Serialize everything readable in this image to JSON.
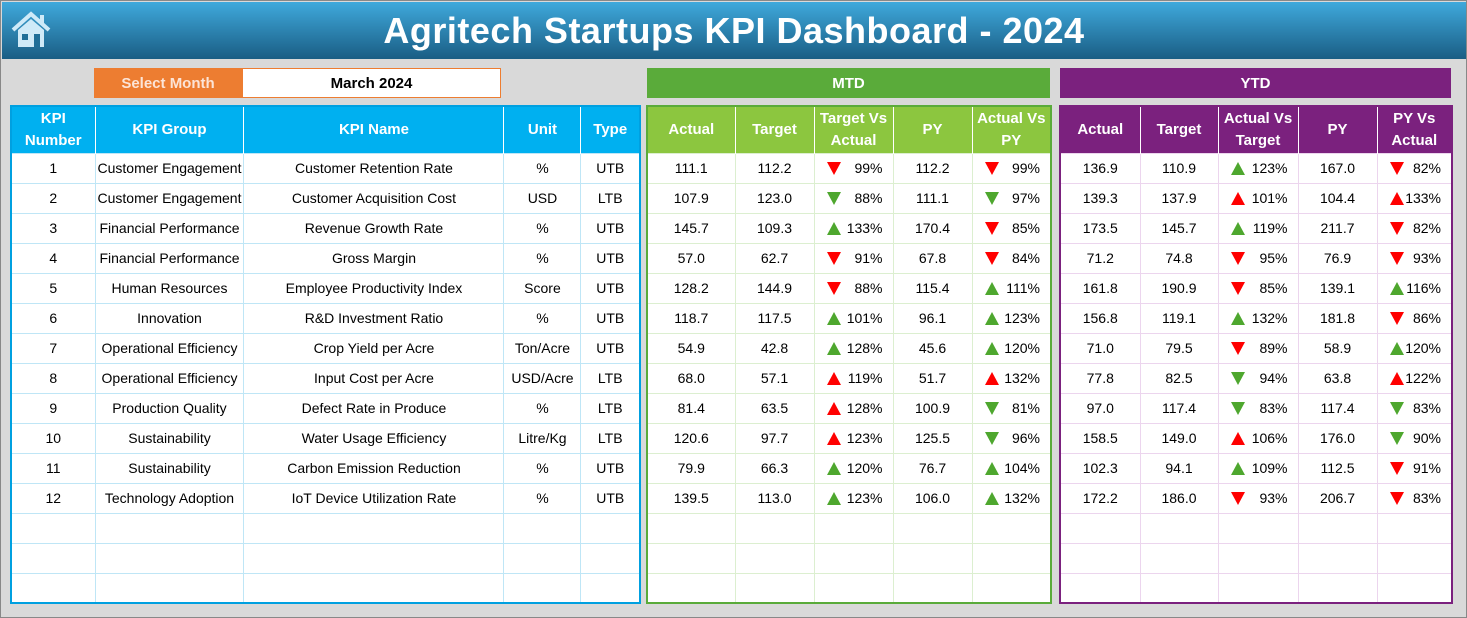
{
  "title": "Agritech Startups KPI Dashboard - 2024",
  "select_month": {
    "label": "Select Month",
    "value": "March 2024"
  },
  "sections": {
    "mtd": "MTD",
    "ytd": "YTD"
  },
  "colors": {
    "green": "#4ea72e",
    "red": "#ff0000",
    "header_blue": "#00b0f0",
    "mtd_green": "#5aab3a",
    "ytd_purple": "#7b217e",
    "select_orange": "#ed7d31"
  },
  "headers": {
    "left": [
      "KPI Number",
      "KPI Group",
      "KPI Name",
      "Unit",
      "Type"
    ],
    "mtd": [
      "Actual",
      "Target",
      "Target Vs Actual",
      "PY",
      "Actual Vs PY"
    ],
    "ytd": [
      "Actual",
      "Target",
      "Actual Vs Target",
      "PY",
      "PY Vs Actual"
    ]
  },
  "rows": [
    {
      "num": "1",
      "group": "Customer Engagement",
      "name": "Customer Retention Rate",
      "unit": "%",
      "type": "UTB",
      "mtd": {
        "actual": "111.1",
        "target": "112.2",
        "tva": {
          "pct": "99%",
          "arrow": "down",
          "color": "red"
        },
        "py": "112.2",
        "avp": {
          "pct": "99%",
          "arrow": "down",
          "color": "red"
        }
      },
      "ytd": {
        "actual": "136.9",
        "target": "110.9",
        "avt": {
          "pct": "123%",
          "arrow": "up",
          "color": "green"
        },
        "py": "167.0",
        "pva": {
          "pct": "82%",
          "arrow": "down",
          "color": "red"
        }
      }
    },
    {
      "num": "2",
      "group": "Customer Engagement",
      "name": "Customer Acquisition Cost",
      "unit": "USD",
      "type": "LTB",
      "mtd": {
        "actual": "107.9",
        "target": "123.0",
        "tva": {
          "pct": "88%",
          "arrow": "down",
          "color": "green"
        },
        "py": "111.1",
        "avp": {
          "pct": "97%",
          "arrow": "down",
          "color": "green"
        }
      },
      "ytd": {
        "actual": "139.3",
        "target": "137.9",
        "avt": {
          "pct": "101%",
          "arrow": "up",
          "color": "red"
        },
        "py": "104.4",
        "pva": {
          "pct": "133%",
          "arrow": "up",
          "color": "red"
        }
      }
    },
    {
      "num": "3",
      "group": "Financial Performance",
      "name": "Revenue Growth Rate",
      "unit": "%",
      "type": "UTB",
      "mtd": {
        "actual": "145.7",
        "target": "109.3",
        "tva": {
          "pct": "133%",
          "arrow": "up",
          "color": "green"
        },
        "py": "170.4",
        "avp": {
          "pct": "85%",
          "arrow": "down",
          "color": "red"
        }
      },
      "ytd": {
        "actual": "173.5",
        "target": "145.7",
        "avt": {
          "pct": "119%",
          "arrow": "up",
          "color": "green"
        },
        "py": "211.7",
        "pva": {
          "pct": "82%",
          "arrow": "down",
          "color": "red"
        }
      }
    },
    {
      "num": "4",
      "group": "Financial Performance",
      "name": "Gross Margin",
      "unit": "%",
      "type": "UTB",
      "mtd": {
        "actual": "57.0",
        "target": "62.7",
        "tva": {
          "pct": "91%",
          "arrow": "down",
          "color": "red"
        },
        "py": "67.8",
        "avp": {
          "pct": "84%",
          "arrow": "down",
          "color": "red"
        }
      },
      "ytd": {
        "actual": "71.2",
        "target": "74.8",
        "avt": {
          "pct": "95%",
          "arrow": "down",
          "color": "red"
        },
        "py": "76.9",
        "pva": {
          "pct": "93%",
          "arrow": "down",
          "color": "red"
        }
      }
    },
    {
      "num": "5",
      "group": "Human Resources",
      "name": "Employee Productivity Index",
      "unit": "Score",
      "type": "UTB",
      "mtd": {
        "actual": "128.2",
        "target": "144.9",
        "tva": {
          "pct": "88%",
          "arrow": "down",
          "color": "red"
        },
        "py": "115.4",
        "avp": {
          "pct": "111%",
          "arrow": "up",
          "color": "green"
        }
      },
      "ytd": {
        "actual": "161.8",
        "target": "190.9",
        "avt": {
          "pct": "85%",
          "arrow": "down",
          "color": "red"
        },
        "py": "139.1",
        "pva": {
          "pct": "116%",
          "arrow": "up",
          "color": "green"
        }
      }
    },
    {
      "num": "6",
      "group": "Innovation",
      "name": "R&D Investment Ratio",
      "unit": "%",
      "type": "UTB",
      "mtd": {
        "actual": "118.7",
        "target": "117.5",
        "tva": {
          "pct": "101%",
          "arrow": "up",
          "color": "green"
        },
        "py": "96.1",
        "avp": {
          "pct": "123%",
          "arrow": "up",
          "color": "green"
        }
      },
      "ytd": {
        "actual": "156.8",
        "target": "119.1",
        "avt": {
          "pct": "132%",
          "arrow": "up",
          "color": "green"
        },
        "py": "181.8",
        "pva": {
          "pct": "86%",
          "arrow": "down",
          "color": "red"
        }
      }
    },
    {
      "num": "7",
      "group": "Operational Efficiency",
      "name": "Crop Yield per Acre",
      "unit": "Ton/Acre",
      "type": "UTB",
      "mtd": {
        "actual": "54.9",
        "target": "42.8",
        "tva": {
          "pct": "128%",
          "arrow": "up",
          "color": "green"
        },
        "py": "45.6",
        "avp": {
          "pct": "120%",
          "arrow": "up",
          "color": "green"
        }
      },
      "ytd": {
        "actual": "71.0",
        "target": "79.5",
        "avt": {
          "pct": "89%",
          "arrow": "down",
          "color": "red"
        },
        "py": "58.9",
        "pva": {
          "pct": "120%",
          "arrow": "up",
          "color": "green"
        }
      }
    },
    {
      "num": "8",
      "group": "Operational Efficiency",
      "name": "Input Cost per Acre",
      "unit": "USD/Acre",
      "type": "LTB",
      "mtd": {
        "actual": "68.0",
        "target": "57.1",
        "tva": {
          "pct": "119%",
          "arrow": "up",
          "color": "red"
        },
        "py": "51.7",
        "avp": {
          "pct": "132%",
          "arrow": "up",
          "color": "red"
        }
      },
      "ytd": {
        "actual": "77.8",
        "target": "82.5",
        "avt": {
          "pct": "94%",
          "arrow": "down",
          "color": "green"
        },
        "py": "63.8",
        "pva": {
          "pct": "122%",
          "arrow": "up",
          "color": "red"
        }
      }
    },
    {
      "num": "9",
      "group": "Production Quality",
      "name": "Defect Rate in Produce",
      "unit": "%",
      "type": "LTB",
      "mtd": {
        "actual": "81.4",
        "target": "63.5",
        "tva": {
          "pct": "128%",
          "arrow": "up",
          "color": "red"
        },
        "py": "100.9",
        "avp": {
          "pct": "81%",
          "arrow": "down",
          "color": "green"
        }
      },
      "ytd": {
        "actual": "97.0",
        "target": "117.4",
        "avt": {
          "pct": "83%",
          "arrow": "down",
          "color": "green"
        },
        "py": "117.4",
        "pva": {
          "pct": "83%",
          "arrow": "down",
          "color": "green"
        }
      }
    },
    {
      "num": "10",
      "group": "Sustainability",
      "name": "Water Usage Efficiency",
      "unit": "Litre/Kg",
      "type": "LTB",
      "mtd": {
        "actual": "120.6",
        "target": "97.7",
        "tva": {
          "pct": "123%",
          "arrow": "up",
          "color": "red"
        },
        "py": "125.5",
        "avp": {
          "pct": "96%",
          "arrow": "down",
          "color": "green"
        }
      },
      "ytd": {
        "actual": "158.5",
        "target": "149.0",
        "avt": {
          "pct": "106%",
          "arrow": "up",
          "color": "red"
        },
        "py": "176.0",
        "pva": {
          "pct": "90%",
          "arrow": "down",
          "color": "green"
        }
      }
    },
    {
      "num": "11",
      "group": "Sustainability",
      "name": "Carbon Emission Reduction",
      "unit": "%",
      "type": "UTB",
      "mtd": {
        "actual": "79.9",
        "target": "66.3",
        "tva": {
          "pct": "120%",
          "arrow": "up",
          "color": "green"
        },
        "py": "76.7",
        "avp": {
          "pct": "104%",
          "arrow": "up",
          "color": "green"
        }
      },
      "ytd": {
        "actual": "102.3",
        "target": "94.1",
        "avt": {
          "pct": "109%",
          "arrow": "up",
          "color": "green"
        },
        "py": "112.5",
        "pva": {
          "pct": "91%",
          "arrow": "down",
          "color": "red"
        }
      }
    },
    {
      "num": "12",
      "group": "Technology Adoption",
      "name": "IoT Device Utilization Rate",
      "unit": "%",
      "type": "UTB",
      "mtd": {
        "actual": "139.5",
        "target": "113.0",
        "tva": {
          "pct": "123%",
          "arrow": "up",
          "color": "green"
        },
        "py": "106.0",
        "avp": {
          "pct": "132%",
          "arrow": "up",
          "color": "green"
        }
      },
      "ytd": {
        "actual": "172.2",
        "target": "186.0",
        "avt": {
          "pct": "93%",
          "arrow": "down",
          "color": "red"
        },
        "py": "206.7",
        "pva": {
          "pct": "83%",
          "arrow": "down",
          "color": "red"
        }
      }
    }
  ]
}
